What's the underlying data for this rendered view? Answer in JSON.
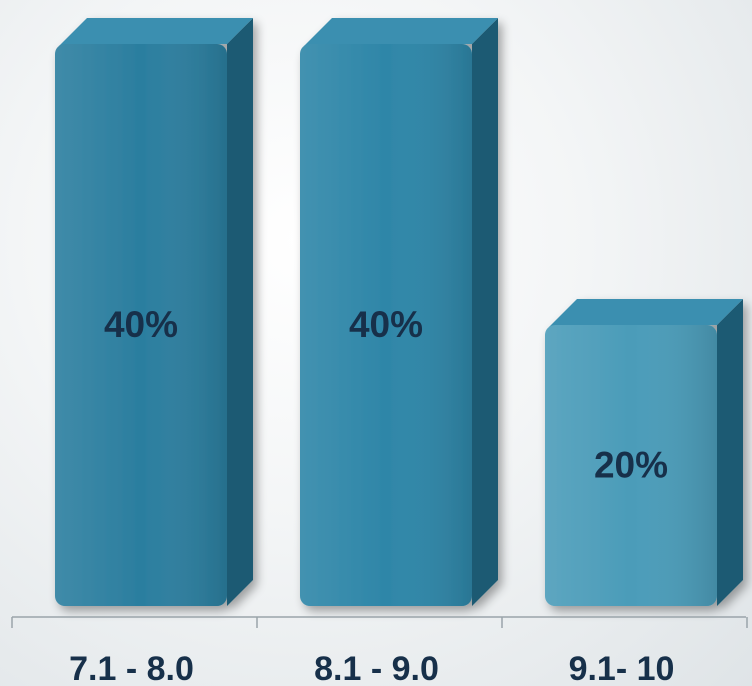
{
  "chart_data": {
    "type": "bar",
    "categories": [
      "7.1 - 8.0",
      "8.1 - 9.0",
      "9.1- 10"
    ],
    "values": [
      40,
      40,
      20
    ],
    "value_labels": [
      "40%",
      "40%",
      "20%"
    ],
    "unit": "%",
    "ylim": [
      0,
      40
    ],
    "grid": false,
    "legend": "none",
    "colors": {
      "bar_front": [
        "#2b7e9f",
        "#2e86a8",
        "#4b9cb9"
      ],
      "bar_side": "#1d5a73",
      "bar_top": "#3a8fb0",
      "label_text": "#17304a",
      "axis_line": "#9aa4aa"
    }
  }
}
